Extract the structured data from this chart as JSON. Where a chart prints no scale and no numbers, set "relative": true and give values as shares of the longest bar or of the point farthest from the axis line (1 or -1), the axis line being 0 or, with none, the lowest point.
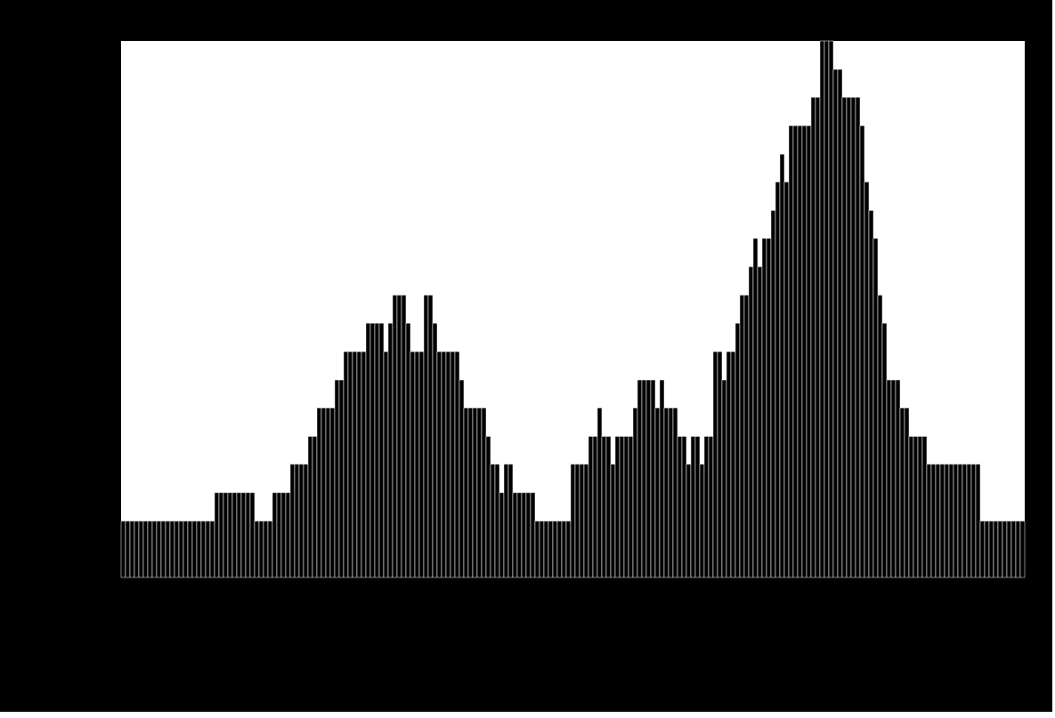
{
  "chart_data": {
    "type": "bar",
    "relative": true,
    "color": "#000000",
    "categories": [
      null,
      null,
      null,
      null,
      null,
      null,
      null,
      null,
      null,
      null,
      null,
      null,
      null,
      null,
      null,
      null,
      null,
      null,
      null,
      null,
      null,
      null,
      null,
      null,
      null,
      null,
      null,
      null,
      null,
      null,
      null,
      null,
      null,
      null,
      null,
      null,
      null,
      null,
      null,
      null,
      null,
      null,
      null,
      null,
      null,
      null,
      null,
      null,
      null,
      null,
      null,
      null,
      null,
      null,
      null,
      null,
      null,
      null,
      null,
      null,
      null,
      null,
      null,
      null,
      null,
      null,
      null,
      null,
      null,
      null,
      null,
      null,
      null,
      null,
      null,
      null,
      null,
      null,
      null,
      null,
      null,
      null,
      null,
      null,
      null,
      null,
      null,
      null,
      null,
      null,
      null,
      null,
      null,
      null,
      null,
      null,
      null,
      null,
      null,
      null,
      null,
      null,
      null,
      null,
      null,
      null,
      null,
      null,
      null,
      null,
      null,
      null,
      null,
      null,
      null,
      null,
      null,
      null,
      null,
      null,
      null,
      null,
      null,
      null,
      null,
      null,
      null,
      null,
      null,
      null,
      null,
      null,
      null,
      null,
      null,
      null,
      null,
      null,
      null,
      null,
      null,
      null,
      null,
      null,
      null,
      null,
      null,
      null,
      null,
      null,
      null,
      null,
      null,
      null,
      null,
      null,
      null,
      null,
      null,
      null,
      null,
      null,
      null,
      null,
      null,
      null,
      null,
      null,
      null,
      null,
      null,
      null,
      null,
      null,
      null,
      null,
      null,
      null,
      null,
      null,
      null,
      null,
      null,
      null,
      null,
      null,
      null,
      null,
      null,
      null,
      null,
      null,
      null,
      null,
      null,
      null,
      null,
      null,
      null,
      null,
      null,
      null,
      null
    ],
    "values": [
      0.105,
      0.105,
      0.105,
      0.105,
      0.105,
      0.105,
      0.105,
      0.105,
      0.105,
      0.105,
      0.105,
      0.105,
      0.105,
      0.105,
      0.105,
      0.105,
      0.105,
      0.105,
      0.105,
      0.105,
      0.105,
      0.158,
      0.158,
      0.158,
      0.158,
      0.158,
      0.158,
      0.158,
      0.158,
      0.158,
      0.105,
      0.105,
      0.105,
      0.105,
      0.158,
      0.158,
      0.158,
      0.158,
      0.211,
      0.211,
      0.211,
      0.211,
      0.263,
      0.263,
      0.316,
      0.316,
      0.316,
      0.316,
      0.368,
      0.368,
      0.421,
      0.421,
      0.421,
      0.421,
      0.421,
      0.474,
      0.474,
      0.474,
      0.474,
      0.421,
      0.474,
      0.526,
      0.526,
      0.526,
      0.474,
      0.421,
      0.421,
      0.421,
      0.526,
      0.526,
      0.474,
      0.421,
      0.421,
      0.421,
      0.421,
      0.421,
      0.368,
      0.316,
      0.316,
      0.316,
      0.316,
      0.316,
      0.263,
      0.211,
      0.211,
      0.158,
      0.211,
      0.211,
      0.158,
      0.158,
      0.158,
      0.158,
      0.158,
      0.105,
      0.105,
      0.105,
      0.105,
      0.105,
      0.105,
      0.105,
      0.105,
      0.211,
      0.211,
      0.211,
      0.211,
      0.263,
      0.263,
      0.316,
      0.263,
      0.263,
      0.211,
      0.263,
      0.263,
      0.263,
      0.263,
      0.316,
      0.368,
      0.368,
      0.368,
      0.368,
      0.316,
      0.368,
      0.316,
      0.316,
      0.316,
      0.263,
      0.263,
      0.211,
      0.263,
      0.263,
      0.211,
      0.263,
      0.263,
      0.421,
      0.421,
      0.368,
      0.421,
      0.421,
      0.474,
      0.526,
      0.526,
      0.579,
      0.632,
      0.579,
      0.632,
      0.632,
      0.684,
      0.737,
      0.789,
      0.737,
      0.842,
      0.842,
      0.842,
      0.842,
      0.842,
      0.895,
      0.895,
      1,
      1,
      1,
      0.947,
      0.947,
      0.895,
      0.895,
      0.895,
      0.895,
      0.842,
      0.737,
      0.684,
      0.632,
      0.526,
      0.474,
      0.368,
      0.368,
      0.368,
      0.316,
      0.316,
      0.263,
      0.263,
      0.263,
      0.263,
      0.211,
      0.211,
      0.211,
      0.211,
      0.211,
      0.211,
      0.211,
      0.211,
      0.211,
      0.211,
      0.211,
      0.211,
      0.105,
      0.105,
      0.105,
      0.105,
      0.105,
      0.105,
      0.105,
      0.105,
      0.105,
      0.105
    ]
  }
}
